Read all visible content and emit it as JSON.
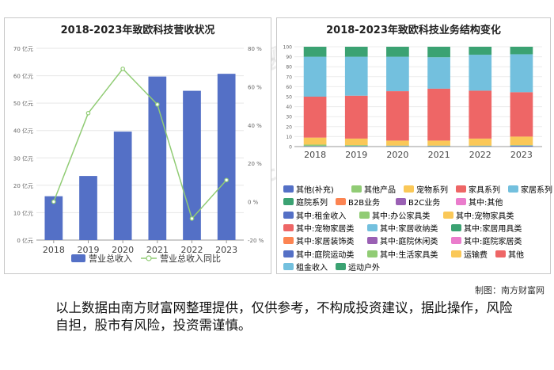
{
  "watermark": [
    "南方财富网",
    "southmoney.com"
  ],
  "credit": "制图：南方财富网",
  "disclaimer": "以上数据由南方财富网整理提供，仅供参考，不构成投资建议，据此操作，风险自担，股市有风险，投资需谨慎。",
  "chart_data": [
    {
      "type": "bar",
      "title": "2018-2023年致欧科技营收状况",
      "categories": [
        "2018",
        "2019",
        "2020",
        "2021",
        "2022",
        "2023"
      ],
      "ylim": [
        0,
        70
      ],
      "yticks": [
        "0 亿元",
        "10 亿元",
        "20 亿元",
        "30 亿元",
        "40 亿元",
        "50 亿元",
        "60 亿元",
        "70 亿元"
      ],
      "y2lim": [
        -20,
        80
      ],
      "y2ticks": [
        "-20 %",
        "0 %",
        "20 %",
        "40 %",
        "60 %",
        "80 %"
      ],
      "series": [
        {
          "name": "营业总收入",
          "type": "bar",
          "color": "#5470c6",
          "values": [
            16.0,
            23.4,
            39.6,
            59.7,
            54.5,
            60.7
          ]
        },
        {
          "name": "营业总收入同比",
          "type": "line",
          "color": "#91cc75",
          "values": [
            0.0,
            46.2,
            69.3,
            50.7,
            -8.8,
            11.3
          ]
        }
      ]
    },
    {
      "type": "bar",
      "stacked": true,
      "title": "2018-2023年致欧科技业务结构变化",
      "categories": [
        "2018",
        "2019",
        "2020",
        "2021",
        "2022",
        "2023"
      ],
      "ylim": [
        0,
        100
      ],
      "yticks": [
        "0",
        "10",
        "20",
        "30",
        "40",
        "50",
        "60",
        "70",
        "80",
        "90",
        "100"
      ],
      "legend": [
        {
          "name": "其他(补充)",
          "color": "#5470c6"
        },
        {
          "name": "其他产品",
          "color": "#91cc75"
        },
        {
          "name": "宠物系列",
          "color": "#fac858"
        },
        {
          "name": "家具系列",
          "color": "#ee6666"
        },
        {
          "name": "家居系列",
          "color": "#73c0de"
        },
        {
          "name": "庭院系列",
          "color": "#3ba272"
        },
        {
          "name": "B2B业务",
          "color": "#fc8452"
        },
        {
          "name": "B2C业务",
          "color": "#9a60b4"
        },
        {
          "name": "其中:其他",
          "color": "#ea7ccc"
        },
        {
          "name": "其中:租金收入",
          "color": "#5470c6"
        },
        {
          "name": "其中:办公家具类",
          "color": "#91cc75"
        },
        {
          "name": "其中:宠物家具类",
          "color": "#fac858"
        },
        {
          "name": "其中:宠物家居类",
          "color": "#ee6666"
        },
        {
          "name": "其中:家居收纳类",
          "color": "#73c0de"
        },
        {
          "name": "其中:家居用具类",
          "color": "#3ba272"
        },
        {
          "name": "其中:家居装饰类",
          "color": "#fc8452"
        },
        {
          "name": "其中:庭院休闲类",
          "color": "#9a60b4"
        },
        {
          "name": "其中:庭院家居类",
          "color": "#ea7ccc"
        },
        {
          "name": "其中:庭院运动类",
          "color": "#5470c6"
        },
        {
          "name": "其中:生活家具类",
          "color": "#91cc75"
        },
        {
          "name": "运输费",
          "color": "#fac858"
        },
        {
          "name": "其他",
          "color": "#ee6666"
        },
        {
          "name": "租金收入",
          "color": "#73c0de"
        },
        {
          "name": "运动户外",
          "color": "#3ba272"
        }
      ],
      "series": [
        {
          "name": "其他(补充)",
          "color": "#5470c6",
          "values": [
            0.5,
            0.5,
            0.5,
            0.5,
            0.5,
            1.0
          ]
        },
        {
          "name": "其他产品",
          "color": "#91cc75",
          "values": [
            1.5,
            1.0,
            0.5,
            0.5,
            0.5,
            0.5
          ]
        },
        {
          "name": "宠物系列",
          "color": "#fac858",
          "values": [
            7.0,
            6.5,
            5.0,
            5.0,
            7.0,
            8.5
          ]
        },
        {
          "name": "家具系列",
          "color": "#ee6666",
          "values": [
            41.0,
            43.0,
            49.5,
            52.0,
            48.0,
            44.5
          ]
        },
        {
          "name": "家居系列",
          "color": "#73c0de",
          "values": [
            40.0,
            39.0,
            34.5,
            31.5,
            36.0,
            38.0
          ]
        },
        {
          "name": "庭院系列",
          "color": "#3ba272",
          "values": [
            10.0,
            10.0,
            10.0,
            10.5,
            8.0,
            7.5
          ]
        }
      ]
    }
  ]
}
